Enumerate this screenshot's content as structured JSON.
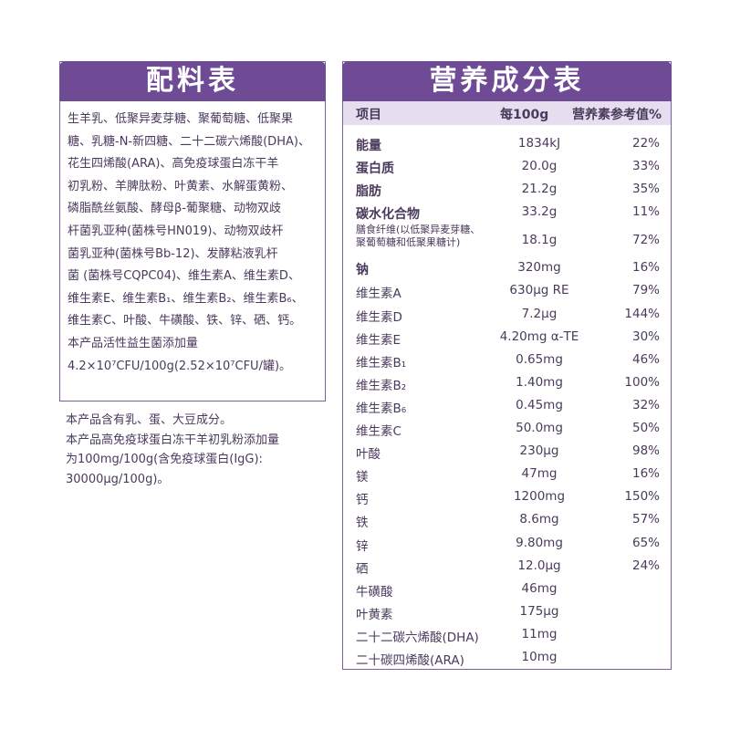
{
  "ingredients": {
    "title": "配料表",
    "lines": [
      "生羊乳、低聚异麦芽糖、聚葡萄糖、低聚果",
      "糖、乳糖-N-新四糖、二十二碳六烯酸(DHA)、",
      "花生四烯酸(ARA)、高免疫球蛋白冻干羊",
      "初乳粉、羊脾肽粉、叶黄素、水解蛋黄粉、",
      "磷脂酰丝氨酸、酵母β-葡聚糖、动物双歧",
      "杆菌乳亚种(菌株号HN019)、动物双歧杆",
      "菌乳亚种(菌株号Bb-12)、发酵粘液乳杆",
      "菌 (菌株号CQPC04)、维生素A、维生素D、",
      "维生素E、维生素B₁、维生素B₂、维生素B₆、",
      "维生素C、叶酸、牛磺酸、铁、锌、硒、钙。",
      "本产品活性益生菌添加量",
      "4.2×10⁷CFU/100g(2.52×10⁷CFU/罐)。"
    ]
  },
  "notes": [
    "本产品含有乳、蛋、大豆成分。",
    "本产品高免疫球蛋白冻干羊初乳粉添加量",
    "为100mg/100g(含免疫球蛋白(IgG):",
    "30000μg/100g)。"
  ],
  "nutrition": {
    "title": "营养成分表",
    "header": {
      "item": "项目",
      "per100g": "每100g",
      "nrv": "营养素参考值%"
    },
    "rows": [
      {
        "name": "能量",
        "bold": true,
        "amount": "1834kJ",
        "nrv": "22%"
      },
      {
        "name": "蛋白质",
        "bold": true,
        "amount": "20.0g",
        "nrv": "33%"
      },
      {
        "name": "脂肪",
        "bold": true,
        "amount": "21.2g",
        "nrv": "35%"
      },
      {
        "name": "碳水化合物",
        "bold": true,
        "amount": "33.2g",
        "nrv": "11%"
      },
      {
        "name": "膳食纤维(以低聚异麦芽糖、",
        "name2": "聚葡萄糖和低聚果糖计)",
        "amount": "18.1g",
        "nrv": "72%"
      },
      {
        "name": "钠",
        "bold": true,
        "amount": "320mg",
        "nrv": "16%"
      },
      {
        "name": "维生素A",
        "amount": "630μg RE",
        "nrv": "79%"
      },
      {
        "name": "维生素D",
        "amount": "7.2μg",
        "nrv": "144%"
      },
      {
        "name": "维生素E",
        "amount": "4.20mg α-TE",
        "nrv": "30%"
      },
      {
        "name": "维生素B₁",
        "amount": "0.65mg",
        "nrv": "46%"
      },
      {
        "name": "维生素B₂",
        "amount": "1.40mg",
        "nrv": "100%"
      },
      {
        "name": "维生素B₆",
        "amount": "0.45mg",
        "nrv": "32%"
      },
      {
        "name": "维生素C",
        "amount": "50.0mg",
        "nrv": "50%"
      },
      {
        "name": "叶酸",
        "amount": "230μg",
        "nrv": "98%"
      },
      {
        "name": "镁",
        "amount": "47mg",
        "nrv": "16%"
      },
      {
        "name": "钙",
        "amount": "1200mg",
        "nrv": "150%"
      },
      {
        "name": "铁",
        "amount": "8.6mg",
        "nrv": "57%"
      },
      {
        "name": "锌",
        "amount": "9.80mg",
        "nrv": "65%"
      },
      {
        "name": "硒",
        "amount": "12.0μg",
        "nrv": "24%"
      },
      {
        "name": "牛磺酸",
        "amount": "46mg",
        "nrv": ""
      },
      {
        "name": "叶黄素",
        "amount": "175μg",
        "nrv": ""
      },
      {
        "name": "二十二碳六烯酸(DHA)",
        "amount": "11mg",
        "nrv": ""
      },
      {
        "name": "二十碳四烯酸(ARA)",
        "amount": "10mg",
        "nrv": ""
      }
    ]
  }
}
